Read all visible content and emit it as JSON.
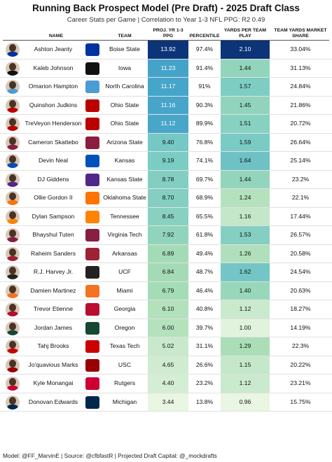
{
  "title": "Running Back Prospect Model (Pre Draft) - 2025 Draft Class",
  "subtitle": "Career Stats per Game | Correlation to Year 1-3 NFL PPG: R2 0.49",
  "footer": "Model: @FF_MarvinE | Source: @cfbfastR | Projected Draft Capital: @_mockdrafts",
  "columns": {
    "name": "NAME",
    "team": "TEAM",
    "ppg": "PROJ. YR 1-3 PPG",
    "percentile": "PERCENTILE",
    "ypp": "YARDS PER TEAM PLAY",
    "share": "TEAM YARDS MARKET SHARE"
  },
  "chart_data": {
    "type": "table",
    "title": "Running Back Prospect Model (Pre Draft) - 2025 Draft Class",
    "columns": [
      "NAME",
      "TEAM",
      "PROJ. YR 1-3 PPG",
      "PERCENTILE",
      "YARDS PER TEAM PLAY",
      "TEAM YARDS MARKET SHARE"
    ],
    "rows": [
      {
        "name": "Ashton Jeanty",
        "team": "Boise State",
        "ppg": "13.92",
        "percentile": "97.4%",
        "ypp": "2.10",
        "share": "33.04%"
      },
      {
        "name": "Kaleb Johnson",
        "team": "Iowa",
        "ppg": "11.23",
        "percentile": "91.4%",
        "ypp": "1.44",
        "share": "31.13%"
      },
      {
        "name": "Omarion Hampton",
        "team": "North Carolina",
        "ppg": "11.17",
        "percentile": "91%",
        "ypp": "1.57",
        "share": "24.84%"
      },
      {
        "name": "Quinshon Judkins",
        "team": "Ohio State",
        "ppg": "11.16",
        "percentile": "90.3%",
        "ypp": "1.45",
        "share": "21.86%"
      },
      {
        "name": "TreVeyon Henderson",
        "team": "Ohio State",
        "ppg": "11.12",
        "percentile": "89.9%",
        "ypp": "1.51",
        "share": "20.72%"
      },
      {
        "name": "Cameron Skattebo",
        "team": "Arizona State",
        "ppg": "9.40",
        "percentile": "76.8%",
        "ypp": "1.59",
        "share": "26.64%"
      },
      {
        "name": "Devin Neal",
        "team": "Kansas",
        "ppg": "9.19",
        "percentile": "74.1%",
        "ypp": "1.64",
        "share": "25.14%"
      },
      {
        "name": "DJ Giddens",
        "team": "Kansas State",
        "ppg": "8.78",
        "percentile": "69.7%",
        "ypp": "1.44",
        "share": "23.2%"
      },
      {
        "name": "Ollie Gordon II",
        "team": "Oklahoma State",
        "ppg": "8.70",
        "percentile": "68.9%",
        "ypp": "1.24",
        "share": "22.1%"
      },
      {
        "name": "Dylan Sampson",
        "team": "Tennessee",
        "ppg": "8.45",
        "percentile": "65.5%",
        "ypp": "1.16",
        "share": "17.44%"
      },
      {
        "name": "Bhayshul Tuten",
        "team": "Virginia Tech",
        "ppg": "7.92",
        "percentile": "61.8%",
        "ypp": "1.53",
        "share": "26.57%"
      },
      {
        "name": "Raheim Sanders",
        "team": "Arkansas",
        "ppg": "6.89",
        "percentile": "49.4%",
        "ypp": "1.26",
        "share": "20.58%"
      },
      {
        "name": "R.J. Harvey Jr.",
        "team": "UCF",
        "ppg": "6.84",
        "percentile": "48.7%",
        "ypp": "1.62",
        "share": "24.54%"
      },
      {
        "name": "Damien Martinez",
        "team": "Miami",
        "ppg": "6.79",
        "percentile": "46.4%",
        "ypp": "1.40",
        "share": "20.63%"
      },
      {
        "name": "Trevor Etienne",
        "team": "Georgia",
        "ppg": "6.10",
        "percentile": "40.8%",
        "ypp": "1.12",
        "share": "18.27%"
      },
      {
        "name": "Jordan James",
        "team": "Oregon",
        "ppg": "6.00",
        "percentile": "39.7%",
        "ypp": "1.00",
        "share": "14.19%"
      },
      {
        "name": "Tahj Brooks",
        "team": "Texas Tech",
        "ppg": "5.02",
        "percentile": "31.1%",
        "ypp": "1.29",
        "share": "22.3%"
      },
      {
        "name": "Jo'quavious Marks",
        "team": "USC",
        "ppg": "4.65",
        "percentile": "26.6%",
        "ypp": "1.15",
        "share": "20.22%"
      },
      {
        "name": "Kyle Monangai",
        "team": "Rutgers",
        "ppg": "4.40",
        "percentile": "23.2%",
        "ypp": "1.12",
        "share": "23.21%"
      },
      {
        "name": "Donovan Edwards",
        "team": "Michigan",
        "ppg": "3.44",
        "percentile": "13.8%",
        "ypp": "0.96",
        "share": "15.75%"
      }
    ]
  },
  "team_logos": {
    "Boise State": {
      "icon": "bronco-logo-icon",
      "color": "#0033a0"
    },
    "Iowa": {
      "icon": "hawkeye-logo-icon",
      "color": "#111111"
    },
    "North Carolina": {
      "icon": "nc-logo-icon",
      "color": "#4b9cd3"
    },
    "Ohio State": {
      "icon": "ohio-state-logo-icon",
      "color": "#bb0000"
    },
    "Arizona State": {
      "icon": "pitchfork-logo-icon",
      "color": "#8c1d40"
    },
    "Kansas": {
      "icon": "jayhawk-logo-icon",
      "color": "#0051ba"
    },
    "Kansas State": {
      "icon": "wildcat-logo-icon",
      "color": "#512888"
    },
    "Oklahoma State": {
      "icon": "osu-logo-icon",
      "color": "#ff7300"
    },
    "Tennessee": {
      "icon": "t-logo-icon",
      "color": "#ff8200"
    },
    "Virginia Tech": {
      "icon": "vt-logo-icon",
      "color": "#861f41"
    },
    "Arkansas": {
      "icon": "razorback-logo-icon",
      "color": "#9d2235"
    },
    "UCF": {
      "icon": "knight-logo-icon",
      "color": "#222222"
    },
    "Miami": {
      "icon": "u-logo-icon",
      "color": "#f47321"
    },
    "Georgia": {
      "icon": "g-logo-icon",
      "color": "#ba0c2f"
    },
    "Oregon": {
      "icon": "o-logo-icon",
      "color": "#154733"
    },
    "Texas Tech": {
      "icon": "double-t-logo-icon",
      "color": "#cc0000"
    },
    "USC": {
      "icon": "sc-logo-icon",
      "color": "#990000"
    },
    "Rutgers": {
      "icon": "r-logo-icon",
      "color": "#cc0033"
    },
    "Michigan": {
      "icon": "m-logo-icon",
      "color": "#00274c"
    }
  }
}
